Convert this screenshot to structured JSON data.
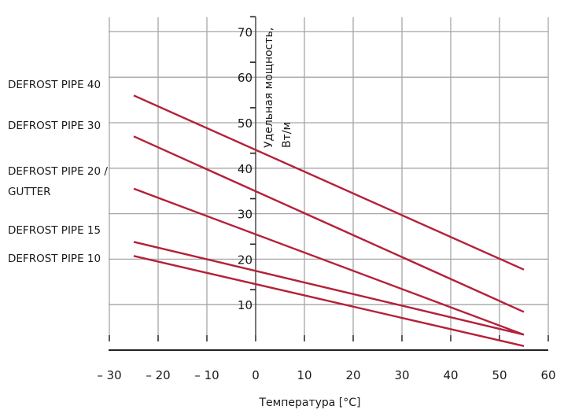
{
  "chart_data": {
    "type": "line",
    "title": "",
    "xlabel": "Температура [°C]",
    "ylabel_line1": "Удельная мощность,",
    "ylabel_line2": "Вт/м",
    "xlim": [
      -30,
      60
    ],
    "ylim": [
      0,
      73.3
    ],
    "x_ticks": [
      -30,
      -20,
      -10,
      0,
      10,
      20,
      30,
      40,
      50,
      60
    ],
    "x_tick_labels": [
      "– 30",
      "– 20",
      "– 10",
      "0",
      "10",
      "20",
      "30",
      "40",
      "50",
      "60"
    ],
    "y_ticks": [
      10,
      20,
      30,
      40,
      50,
      60,
      70
    ],
    "y_tick_labels": [
      "10",
      "20",
      "30",
      "40",
      "50",
      "60",
      "70"
    ],
    "grid": true,
    "legend_placement": "left",
    "line_color": "#b5203a",
    "grid_color": "#a6a6a6",
    "axis_color": "#222222",
    "series": [
      {
        "name": "DEFROST PIPE 40",
        "label_lines": [
          "DEFROST PIPE 40"
        ],
        "x": [
          -25,
          55
        ],
        "y": [
          56,
          17.7
        ]
      },
      {
        "name": "DEFROST PIPE 30",
        "label_lines": [
          "DEFROST PIPE 30"
        ],
        "x": [
          -25,
          55
        ],
        "y": [
          47,
          8.4
        ]
      },
      {
        "name": "DEFROST PIPE 20 / GUTTER",
        "label_lines": [
          "DEFROST PIPE 20 /",
          "GUTTER"
        ],
        "x": [
          -25,
          55
        ],
        "y": [
          35.5,
          3.4
        ]
      },
      {
        "name": "DEFROST PIPE 15",
        "label_lines": [
          "DEFROST PIPE 15"
        ],
        "x": [
          -25,
          55
        ],
        "y": [
          23.8,
          3.4
        ]
      },
      {
        "name": "DEFROST PIPE 10",
        "label_lines": [
          "DEFROST PIPE 10"
        ],
        "x": [
          -25,
          55
        ],
        "y": [
          20.7,
          0.9
        ]
      }
    ]
  }
}
